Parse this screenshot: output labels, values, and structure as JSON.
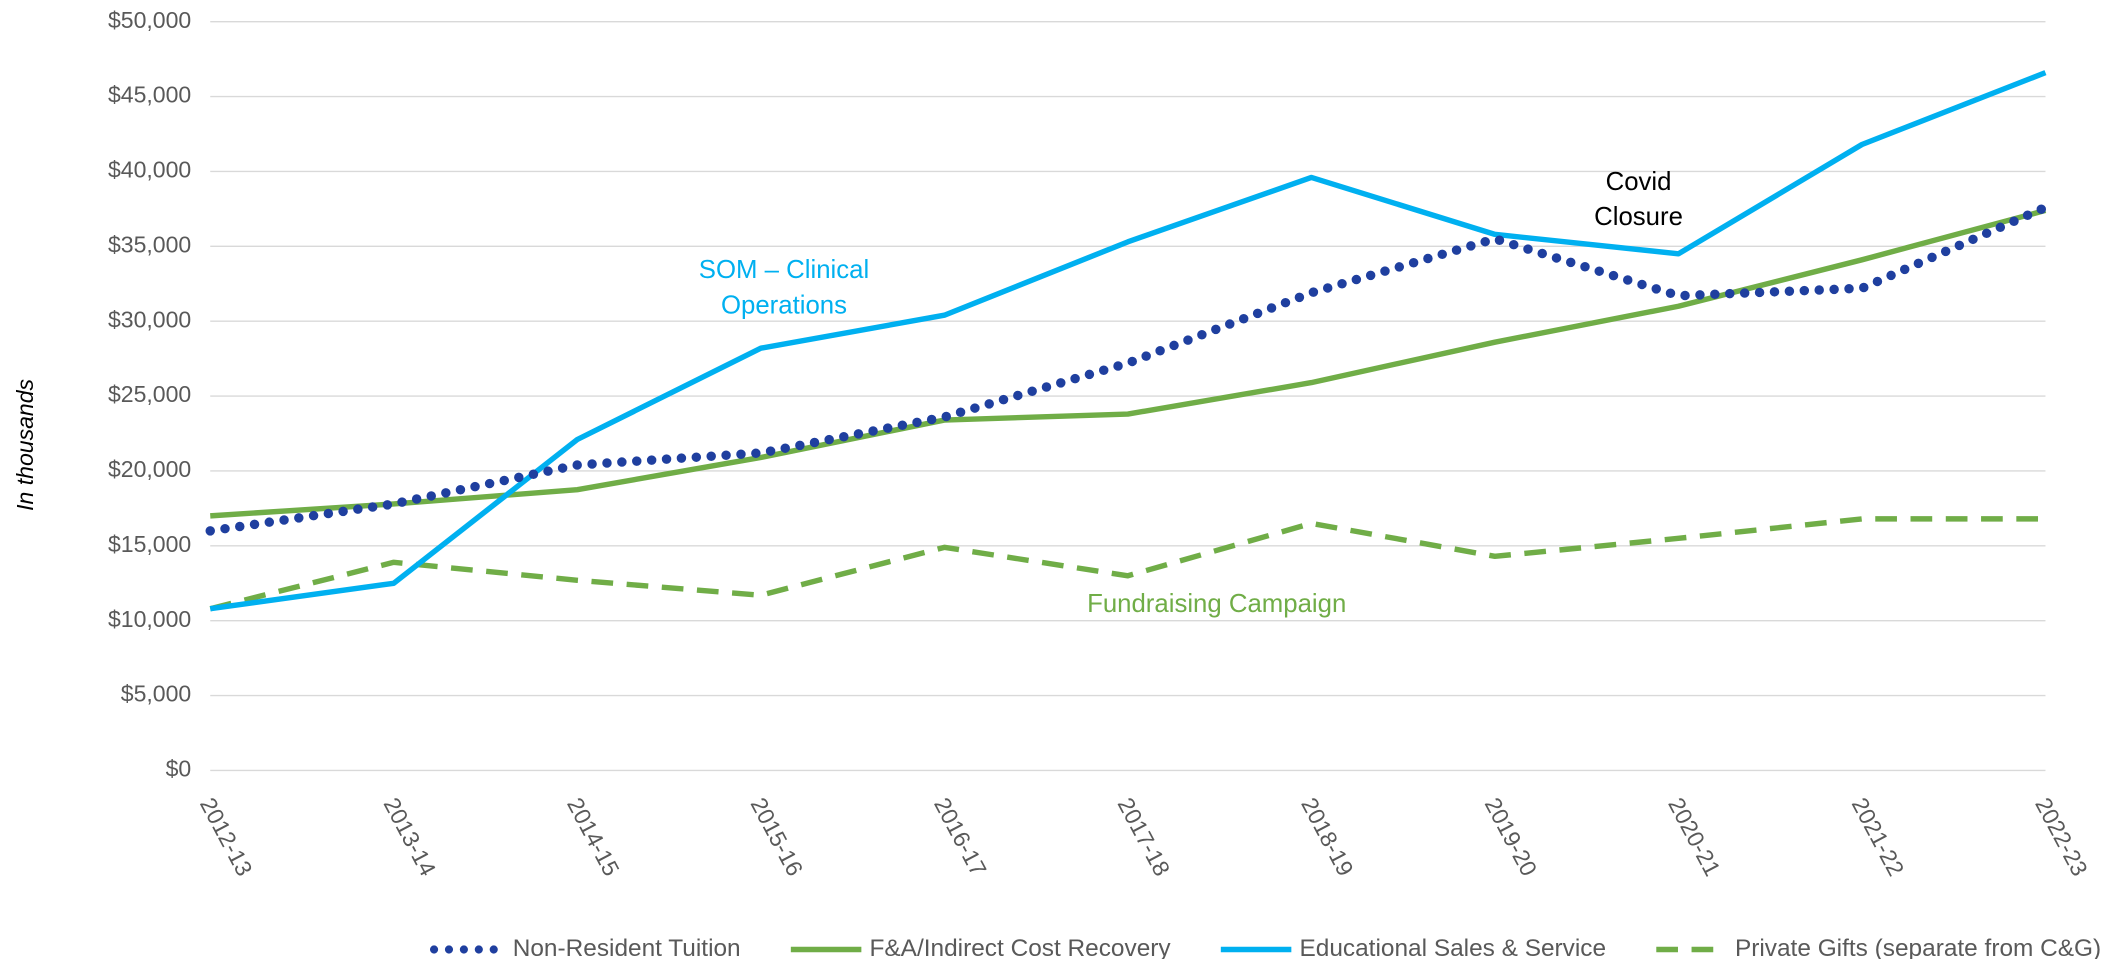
{
  "chart_data": {
    "type": "line",
    "y_label": "In thousands",
    "categories": [
      "2012-13",
      "2013-14",
      "2014-15",
      "2015-16",
      "2016-17",
      "2017-18",
      "2018-19",
      "2019-20",
      "2020-21",
      "2021-22",
      "2022-23"
    ],
    "ylim": [
      0,
      50000
    ],
    "yticks": [
      {
        "value": 0,
        "label": "$0"
      },
      {
        "value": 5000,
        "label": "$5,000"
      },
      {
        "value": 10000,
        "label": "$10,000"
      },
      {
        "value": 15000,
        "label": "$15,000"
      },
      {
        "value": 20000,
        "label": "$20,000"
      },
      {
        "value": 25000,
        "label": "$25,000"
      },
      {
        "value": 30000,
        "label": "$30,000"
      },
      {
        "value": 35000,
        "label": "$35,000"
      },
      {
        "value": 40000,
        "label": "$40,000"
      },
      {
        "value": 45000,
        "label": "$45,000"
      },
      {
        "value": 50000,
        "label": "$50,000"
      }
    ],
    "grid": true,
    "legend": "bottom",
    "series": [
      {
        "name": "Non-Resident Tuition",
        "color": "#1f3f9f",
        "style": "dotted",
        "values": [
          16000,
          17800,
          20400,
          21200,
          23600,
          27200,
          31900,
          35500,
          31700,
          32200,
          37600
        ]
      },
      {
        "name": "F&A/Indirect Cost Recovery",
        "color": "#70ad47",
        "style": "solid",
        "values": [
          17000,
          17800,
          18750,
          20900,
          23400,
          23800,
          25900,
          28600,
          31000,
          34100,
          37400
        ]
      },
      {
        "name": "Educational Sales & Service",
        "color": "#00b0f0",
        "style": "solid",
        "values": [
          10800,
          12500,
          22100,
          28200,
          30400,
          35300,
          39600,
          35800,
          34500,
          41800,
          46600
        ]
      },
      {
        "name": "Private Gifts (separate from C&G)",
        "color": "#70ad47",
        "style": "dashed",
        "values": [
          10800,
          13900,
          12700,
          11700,
          14900,
          13000,
          16500,
          14300,
          15500,
          16800,
          16800
        ]
      }
    ],
    "annotations": [
      {
        "lines": [
          "SOM – Clinical",
          "Operations"
        ],
        "color": "#00b0f0"
      },
      {
        "lines": [
          "Covid",
          "Closure"
        ],
        "color": "#000000"
      },
      {
        "lines": [
          "Fundraising Campaign"
        ],
        "color": "#70ad47"
      }
    ]
  }
}
